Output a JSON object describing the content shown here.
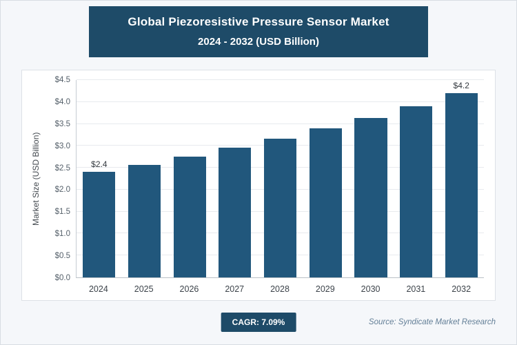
{
  "header": {
    "title_line1": "Global Piezoresistive Pressure Sensor Market",
    "title_line2": "2024 - 2032 (USD Billion)",
    "bg_color": "#1e4b68",
    "text_color": "#ffffff"
  },
  "chart_data": {
    "type": "bar",
    "title": "Global Piezoresistive Pressure Sensor Market 2024 - 2032 (USD Billion)",
    "categories": [
      "2024",
      "2025",
      "2026",
      "2027",
      "2028",
      "2029",
      "2030",
      "2031",
      "2032"
    ],
    "values": [
      2.4,
      2.57,
      2.76,
      2.96,
      3.17,
      3.4,
      3.64,
      3.9,
      4.2
    ],
    "data_labels": [
      "$2.4",
      "",
      "",
      "",
      "",
      "",
      "",
      "",
      "$4.2"
    ],
    "xlabel": "",
    "ylabel": "Market Size (USD Billion)",
    "ylim": [
      0,
      4.5
    ],
    "y_ticks": [
      "$0.0",
      "$0.5",
      "$1.0",
      "$1.5",
      "$2.0",
      "$2.5",
      "$3.0",
      "$3.5",
      "$4.0",
      "$4.5"
    ],
    "grid": true,
    "legend": false,
    "bar_color": "#21577c"
  },
  "footer": {
    "cagr_label": "CAGR: 7.09%",
    "source": "Source: Syndicate Market Research",
    "badge_color": "#1e4b68"
  }
}
